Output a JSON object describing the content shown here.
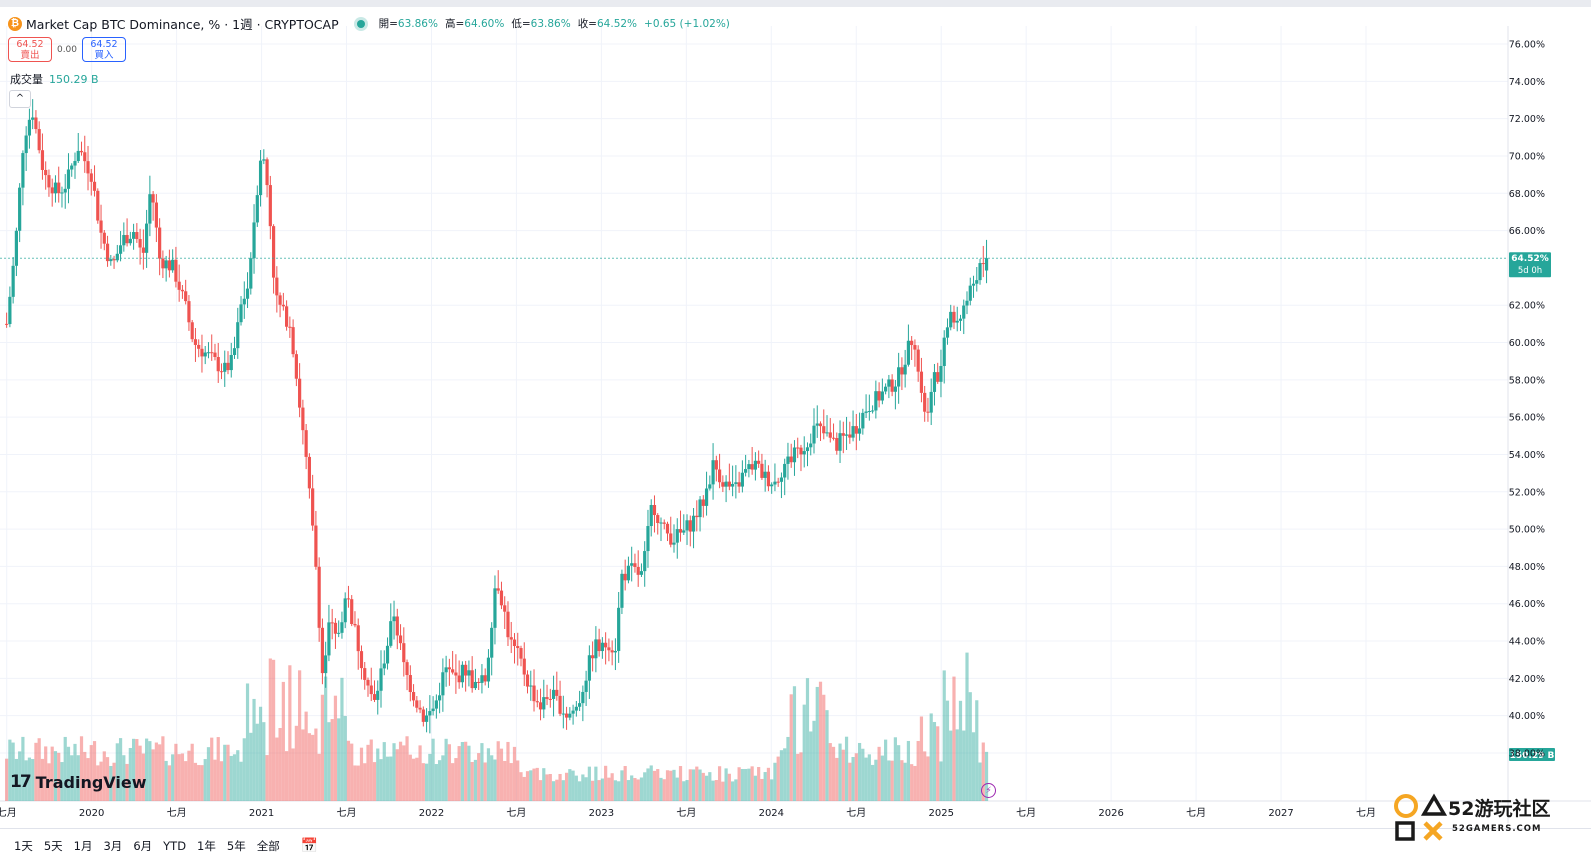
{
  "symbol": {
    "title": "Market Cap BTC Dominance, % · 1週 · CRYPTOCAP",
    "icon": "btc-icon",
    "icon_glyph": "₿"
  },
  "ohlc": {
    "open_label": "開=",
    "open": "63.86%",
    "high_label": "高=",
    "high": "64.60%",
    "low_label": "低=",
    "low": "63.86%",
    "close_label": "收=",
    "close": "64.52%",
    "change": "+0.65 (+1.02%)"
  },
  "trade": {
    "sell_price": "64.52",
    "sell_label": "賣出",
    "spread": "0.00",
    "buy_price": "64.52",
    "buy_label": "買入"
  },
  "volume": {
    "label": "成交量",
    "value": "150.29 B"
  },
  "collapse_glyph": "^",
  "branding": {
    "logo_mark": "17",
    "logo_text": "TradingView"
  },
  "flash_glyph": "⚡",
  "bottom_bar": {
    "ranges": [
      "1天",
      "5天",
      "1月",
      "3月",
      "6月",
      "YTD",
      "1年",
      "5年",
      "全部"
    ],
    "calendar_glyph": "📅"
  },
  "watermark": {
    "text": "52游玩社区",
    "subtext": "52GAMERS.COM"
  },
  "colors": {
    "up": "#26a69a",
    "down": "#ef5350",
    "grid": "#f0f3fa",
    "text": "#131722"
  },
  "chart_data": {
    "type": "candlestick",
    "title": "Market Cap BTC Dominance, % · 1週 · CRYPTOCAP",
    "x_ticks": [
      {
        "label": "七月",
        "t": 2019.5
      },
      {
        "label": "2020",
        "t": 2020.0
      },
      {
        "label": "七月",
        "t": 2020.5
      },
      {
        "label": "2021",
        "t": 2021.0
      },
      {
        "label": "七月",
        "t": 2021.5
      },
      {
        "label": "2022",
        "t": 2022.0
      },
      {
        "label": "七月",
        "t": 2022.5
      },
      {
        "label": "2023",
        "t": 2023.0
      },
      {
        "label": "七月",
        "t": 2023.5
      },
      {
        "label": "2024",
        "t": 2024.0
      },
      {
        "label": "七月",
        "t": 2024.5
      },
      {
        "label": "2025",
        "t": 2025.0
      },
      {
        "label": "七月",
        "t": 2025.5
      },
      {
        "label": "2026",
        "t": 2026.0
      },
      {
        "label": "七月",
        "t": 2026.5
      },
      {
        "label": "2027",
        "t": 2027.0
      },
      {
        "label": "七月",
        "t": 2027.5
      }
    ],
    "y_ticks": [
      "76.00%",
      "74.00%",
      "72.00%",
      "70.00%",
      "68.00%",
      "66.00%",
      "62.00%",
      "60.00%",
      "58.00%",
      "56.00%",
      "54.00%",
      "52.00%",
      "50.00%",
      "48.00%",
      "46.00%",
      "44.00%",
      "42.00%",
      "40.00%",
      "38.00%"
    ],
    "y_tick_values": [
      76,
      74,
      72,
      70,
      68,
      66,
      62,
      60,
      58,
      56,
      54,
      52,
      50,
      48,
      46,
      44,
      42,
      40,
      38
    ],
    "ylim": [
      37.4,
      76.8
    ],
    "xlim": [
      2019.49,
      2027.55
    ],
    "last_price": {
      "value": 64.52,
      "label": "64.52%",
      "countdown": "5d 0h"
    },
    "last_volume_label": "150.29 B",
    "anchors": [
      [
        2019.5,
        61
      ],
      [
        2019.55,
        65
      ],
      [
        2019.6,
        71
      ],
      [
        2019.65,
        72.5
      ],
      [
        2019.72,
        69
      ],
      [
        2019.8,
        68
      ],
      [
        2019.85,
        68.5
      ],
      [
        2019.92,
        70.5
      ],
      [
        2020.0,
        69
      ],
      [
        2020.05,
        66
      ],
      [
        2020.12,
        64
      ],
      [
        2020.18,
        65.5
      ],
      [
        2020.25,
        66
      ],
      [
        2020.3,
        64.5
      ],
      [
        2020.35,
        68.5
      ],
      [
        2020.4,
        64.5
      ],
      [
        2020.48,
        64
      ],
      [
        2020.55,
        62
      ],
      [
        2020.6,
        60
      ],
      [
        2020.66,
        59.5
      ],
      [
        2020.72,
        59
      ],
      [
        2020.78,
        58.5
      ],
      [
        2020.83,
        59
      ],
      [
        2020.88,
        62
      ],
      [
        2020.92,
        63
      ],
      [
        2020.96,
        67
      ],
      [
        2021.0,
        70.5
      ],
      [
        2021.04,
        68
      ],
      [
        2021.08,
        62.5
      ],
      [
        2021.13,
        61.5
      ],
      [
        2021.17,
        61
      ],
      [
        2021.22,
        57
      ],
      [
        2021.27,
        53
      ],
      [
        2021.32,
        48
      ],
      [
        2021.36,
        42
      ],
      [
        2021.4,
        45
      ],
      [
        2021.44,
        44
      ],
      [
        2021.5,
        46.5
      ],
      [
        2021.55,
        44.5
      ],
      [
        2021.6,
        42.5
      ],
      [
        2021.66,
        40.5
      ],
      [
        2021.72,
        43
      ],
      [
        2021.78,
        45.5
      ],
      [
        2021.84,
        42.5
      ],
      [
        2021.9,
        41
      ],
      [
        2021.96,
        39.8
      ],
      [
        2022.02,
        40.5
      ],
      [
        2022.08,
        42.5
      ],
      [
        2022.14,
        42
      ],
      [
        2022.2,
        42.5
      ],
      [
        2022.26,
        41.5
      ],
      [
        2022.32,
        42
      ],
      [
        2022.38,
        47.5
      ],
      [
        2022.42,
        46
      ],
      [
        2022.46,
        44
      ],
      [
        2022.52,
        43
      ],
      [
        2022.58,
        41.5
      ],
      [
        2022.64,
        40.5
      ],
      [
        2022.7,
        41.2
      ],
      [
        2022.76,
        40.5
      ],
      [
        2022.8,
        40.0
      ],
      [
        2022.86,
        40.5
      ],
      [
        2022.92,
        42.5
      ],
      [
        2022.96,
        43.8
      ],
      [
        2023.0,
        43.5
      ],
      [
        2023.04,
        44.0
      ],
      [
        2023.08,
        43.5
      ],
      [
        2023.12,
        47.5
      ],
      [
        2023.18,
        47.8
      ],
      [
        2023.24,
        47.5
      ],
      [
        2023.3,
        51.5
      ],
      [
        2023.36,
        50
      ],
      [
        2023.42,
        49.5
      ],
      [
        2023.48,
        49.8
      ],
      [
        2023.54,
        50.5
      ],
      [
        2023.6,
        51.5
      ],
      [
        2023.66,
        53.5
      ],
      [
        2023.72,
        52.5
      ],
      [
        2023.78,
        52
      ],
      [
        2023.84,
        53
      ],
      [
        2023.9,
        53.5
      ],
      [
        2023.96,
        52.8
      ],
      [
        2024.02,
        52.5
      ],
      [
        2024.08,
        53.5
      ],
      [
        2024.14,
        54
      ],
      [
        2024.2,
        54.5
      ],
      [
        2024.26,
        55.5
      ],
      [
        2024.32,
        55
      ],
      [
        2024.38,
        54.5
      ],
      [
        2024.44,
        55
      ],
      [
        2024.5,
        55.5
      ],
      [
        2024.56,
        56.5
      ],
      [
        2024.62,
        57
      ],
      [
        2024.68,
        57.5
      ],
      [
        2024.74,
        58
      ],
      [
        2024.8,
        59.5
      ],
      [
        2024.84,
        60.5
      ],
      [
        2024.88,
        57
      ],
      [
        2024.92,
        56
      ],
      [
        2024.96,
        58
      ],
      [
        2025.0,
        58.5
      ],
      [
        2025.04,
        61.5
      ],
      [
        2025.08,
        61
      ],
      [
        2025.14,
        62
      ],
      [
        2025.2,
        63.5
      ],
      [
        2025.26,
        64.52
      ]
    ],
    "seed": 7,
    "start": 2019.49,
    "weeks": 305,
    "week_len": 0.01916
  }
}
